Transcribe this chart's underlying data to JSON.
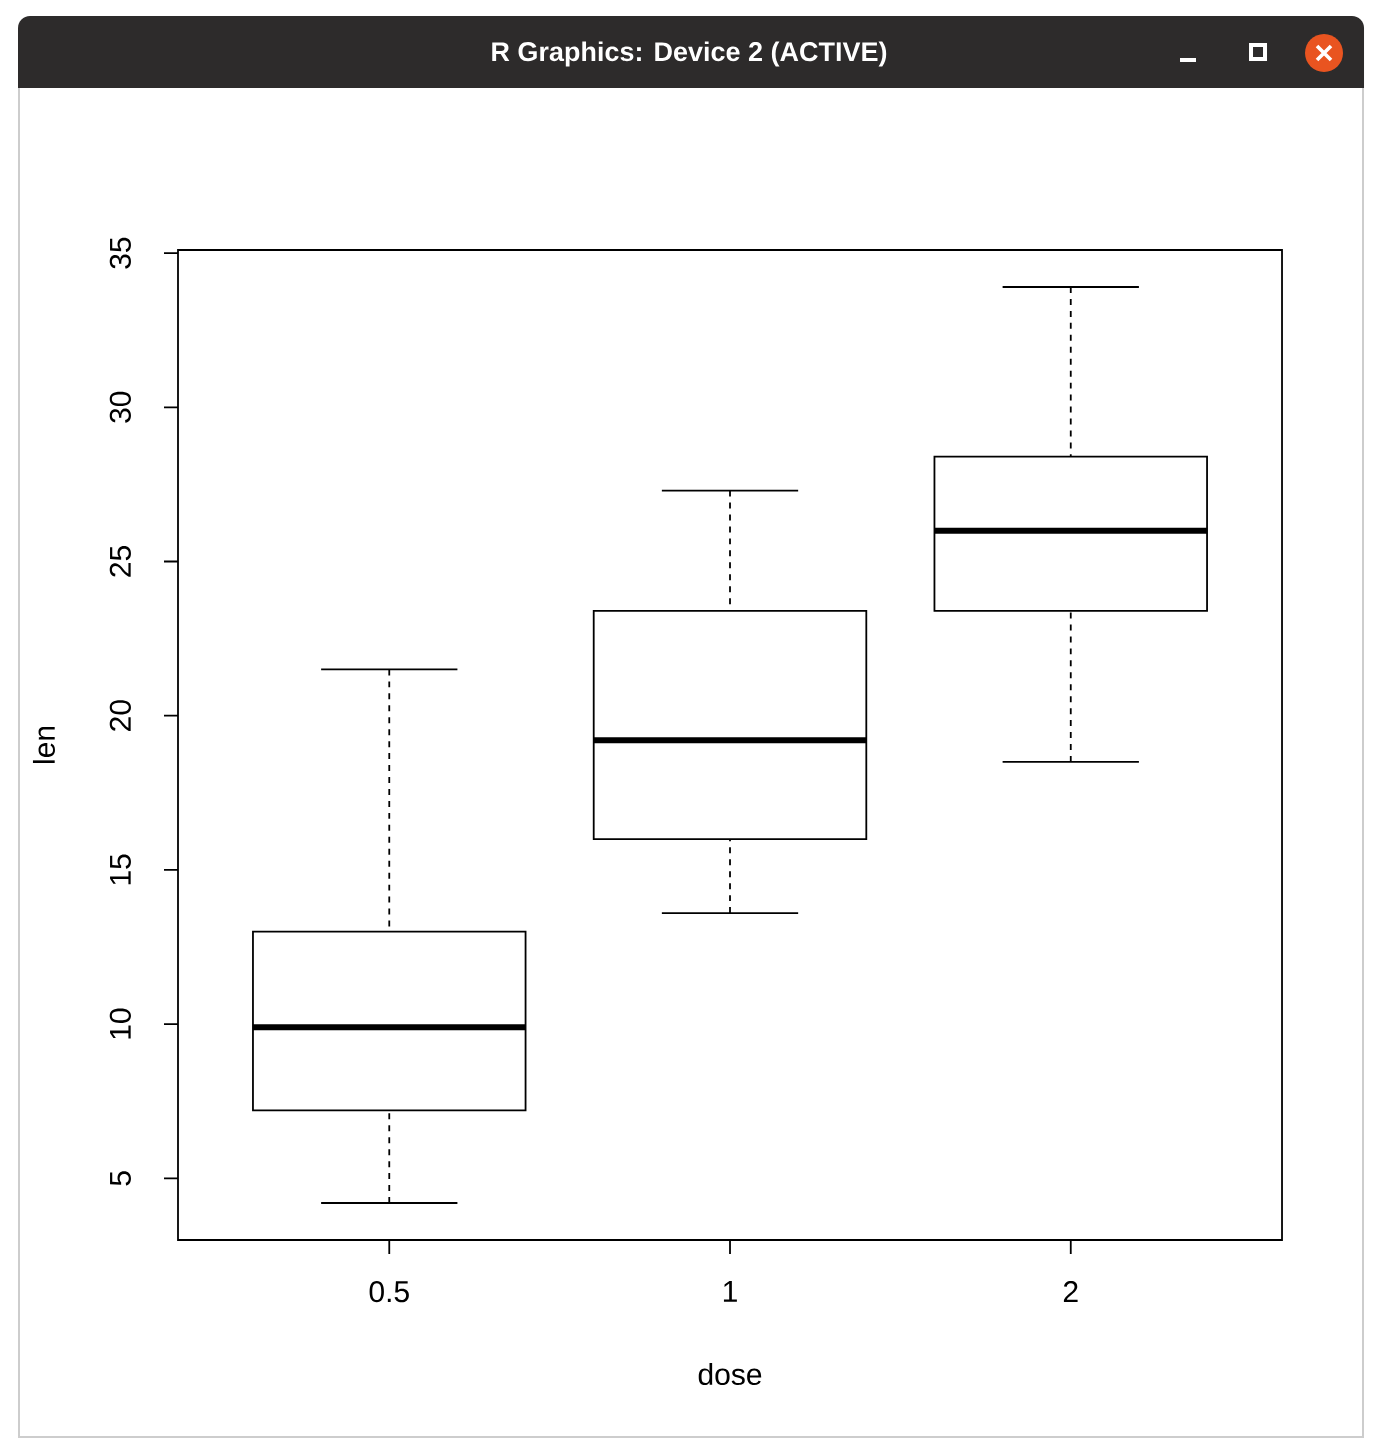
{
  "chart_data": {
    "type": "box",
    "annotations": [
      "R Graphics: Device 2 (ACTIVE)"
    ],
    "xlabel": "dose",
    "ylabel": "len",
    "color": "#000000",
    "categories": [
      "0.5",
      "1",
      "2"
    ],
    "boxes": [
      {
        "low": 4.2,
        "q1": 7.2,
        "median": 9.9,
        "q3": 13.0,
        "high": 21.5
      },
      {
        "low": 13.6,
        "q1": 16.0,
        "median": 19.2,
        "q3": 23.4,
        "high": 27.3
      },
      {
        "low": 18.5,
        "q1": 23.4,
        "median": 26.0,
        "q3": 28.4,
        "high": 33.9
      }
    ],
    "ylim": [
      3.0,
      35.1
    ],
    "yticks": [
      5,
      10,
      15,
      20,
      25,
      30,
      35
    ]
  }
}
